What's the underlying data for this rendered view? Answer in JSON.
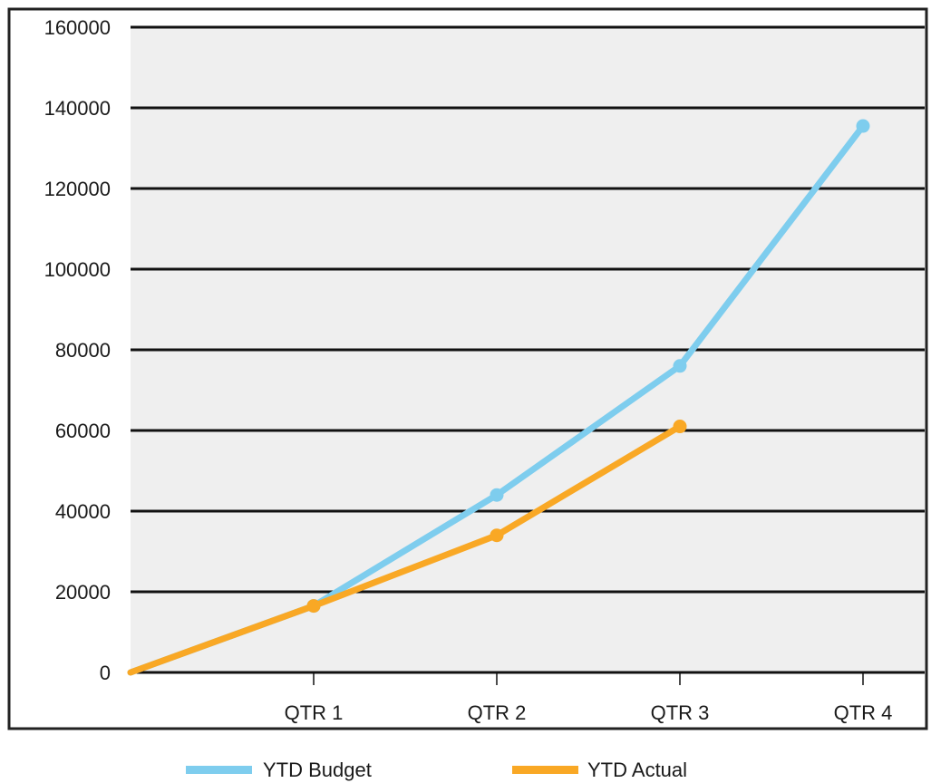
{
  "chart_data": {
    "type": "line",
    "categories": [
      "",
      "QTR 1",
      "QTR 2",
      "QTR 3",
      "QTR 4"
    ],
    "series": [
      {
        "name": "YTD Budget",
        "values": [
          0,
          16500,
          44000,
          76000,
          135500
        ],
        "color": "#7ecdee"
      },
      {
        "name": "YTD Actual",
        "values": [
          0,
          16500,
          34000,
          61000,
          null
        ],
        "color": "#f9a825"
      }
    ],
    "ylim": [
      0,
      160000
    ],
    "yticks": [
      0,
      20000,
      40000,
      60000,
      80000,
      100000,
      120000,
      140000,
      160000
    ],
    "ytick_labels": [
      "0",
      "20000",
      "40000",
      "60000",
      "80000",
      "100000",
      "120000",
      "140000",
      "160000"
    ],
    "xtick_labels": [
      "QTR 1",
      "QTR 2",
      "QTR 3",
      "QTR 4"
    ],
    "title": "",
    "xlabel": "",
    "ylabel": "",
    "grid": "horizontal",
    "legend": "bottom",
    "plot_background": "#efefef"
  }
}
